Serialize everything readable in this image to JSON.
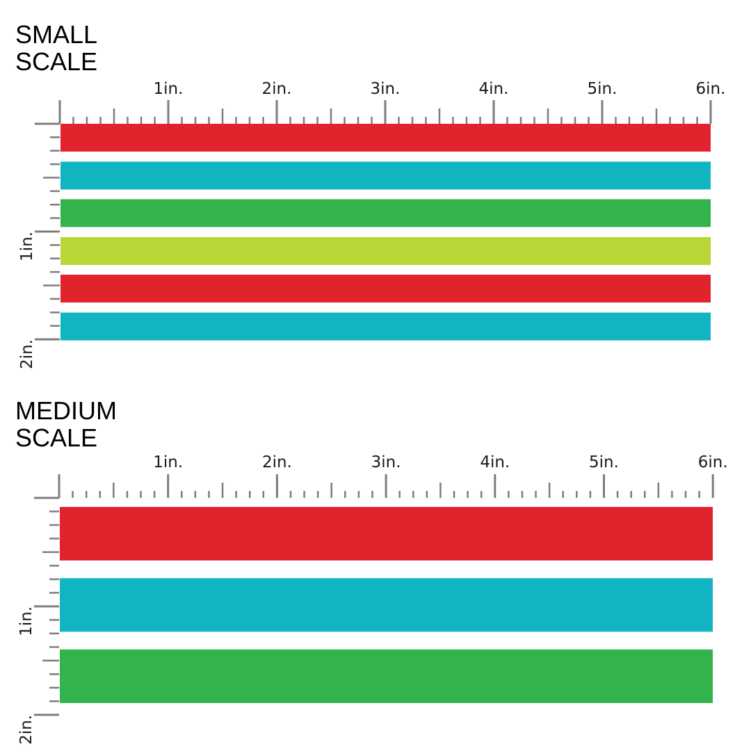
{
  "colors": {
    "red": "#e1232e",
    "teal": "#11b5c1",
    "green": "#33b34c",
    "lime": "#b8d636",
    "tick": "#7d7d7d",
    "text": "#000000"
  },
  "small_scale": {
    "title_line1": "SMALL",
    "title_line2": "SCALE",
    "horizontal_labels": [
      "1in.",
      "2in.",
      "3in.",
      "4in.",
      "5in.",
      "6in."
    ],
    "vertical_labels": [
      "1in.",
      "2in."
    ],
    "stripes": [
      "red",
      "teal",
      "green",
      "lime",
      "red",
      "teal"
    ]
  },
  "medium_scale": {
    "title_line1": "MEDIUM",
    "title_line2": "SCALE",
    "horizontal_labels": [
      "1in.",
      "2in.",
      "3in.",
      "4in.",
      "5in.",
      "6in."
    ],
    "vertical_labels": [
      "1in.",
      "2in."
    ],
    "stripes": [
      "red",
      "teal",
      "green"
    ]
  }
}
